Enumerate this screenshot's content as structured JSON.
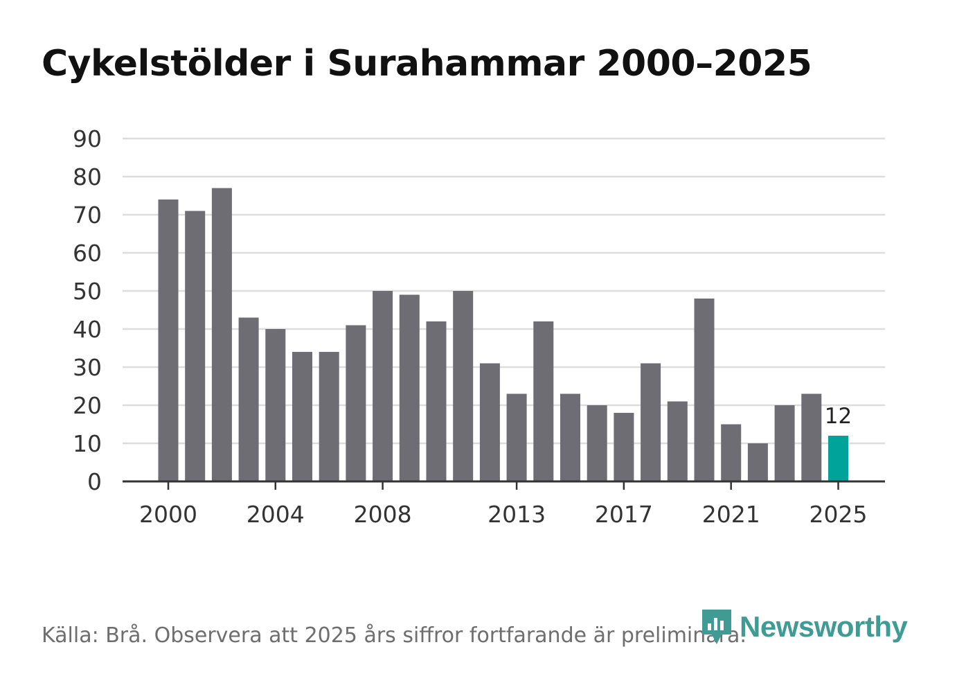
{
  "title": "Cykelstölder i Surahammar 2000–2025",
  "source": "Källa: Brå. Observera att 2025 års siffror fortfarande är preliminära.",
  "brand": {
    "name": "Newsworthy",
    "icon": "newsworthy-logo-icon",
    "color": "#3f9b94"
  },
  "colors": {
    "bar": "#6e6d73",
    "highlight": "#00a399",
    "grid": "#dddddd",
    "axis": "#333333",
    "text": "#333333"
  },
  "chart_data": {
    "type": "bar",
    "title": "Cykelstölder i Surahammar 2000–2025",
    "xlabel": "",
    "ylabel": "",
    "categories": [
      "2000",
      "2001",
      "2002",
      "2003",
      "2004",
      "2005",
      "2006",
      "2007",
      "2008",
      "2009",
      "2010",
      "2011",
      "2012",
      "2013",
      "2014",
      "2015",
      "2016",
      "2017",
      "2018",
      "2019",
      "2020",
      "2021",
      "2022",
      "2023",
      "2024",
      "2025"
    ],
    "values": [
      74,
      71,
      77,
      43,
      40,
      34,
      34,
      41,
      50,
      49,
      42,
      50,
      31,
      23,
      42,
      23,
      20,
      18,
      31,
      21,
      48,
      15,
      10,
      20,
      23,
      12
    ],
    "ylim": [
      0,
      90
    ],
    "yticks": [
      0,
      10,
      20,
      30,
      40,
      50,
      60,
      70,
      80,
      90
    ],
    "xtick_labels": [
      "2000",
      "2004",
      "2008",
      "2013",
      "2017",
      "2021",
      "2025"
    ],
    "highlight": {
      "category": "2025",
      "label": "12"
    },
    "grid": true,
    "legend": "none"
  }
}
